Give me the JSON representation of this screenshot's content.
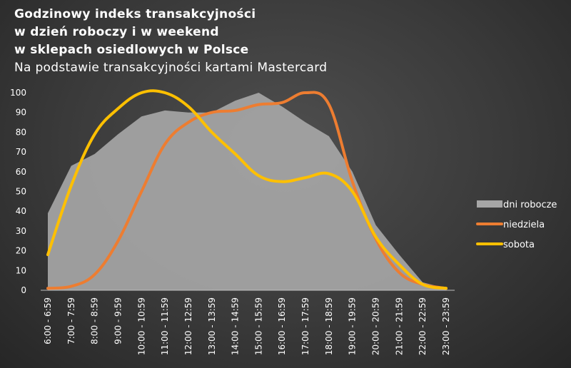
{
  "title_lines": [
    "Godzinowy indeks transakcyjności",
    "w dzień roboczy i w weekend",
    "w sklepach osiedlowych w Polsce"
  ],
  "subtitle": "Na podstawie transakcyjności kartami Mastercard",
  "colors": {
    "dni_robocze": "#a6a6a6",
    "niedziela": "#ed7d31",
    "sobota": "#ffc000"
  },
  "chart_data": {
    "type": "line",
    "title": "Godzinowy indeks transakcyjności w dzień roboczy i w weekend w sklepach osiedlowych w Polsce",
    "subtitle": "Na podstawie transakcyjności kartami Mastercard",
    "categories": [
      "6:00 - 6:59",
      "7:00 - 7:59",
      "8:00 - 8:59",
      "9:00 - 9:59",
      "10:00 - 10:59",
      "11:00 - 11:59",
      "12:00 - 12:59",
      "13:00 - 13:59",
      "14:00 - 14:59",
      "15:00 - 15:59",
      "16:00 - 16:59",
      "17:00 - 17:59",
      "18:00 - 18:59",
      "19:00 - 19:59",
      "20:00 - 20:59",
      "21:00 - 21:59",
      "22:00 - 22:59",
      "23:00 - 23:59"
    ],
    "y_ticks": [
      "0",
      "10",
      "20",
      "30",
      "40",
      "50",
      "60",
      "70",
      "80",
      "90",
      "100"
    ],
    "ylim": [
      0,
      100
    ],
    "grid": false,
    "legend_position": "right",
    "series": [
      {
        "name": "dni robocze",
        "render": "area",
        "values": [
          39,
          63,
          69,
          79,
          88,
          91,
          90,
          90,
          96,
          100,
          93,
          85,
          78,
          60,
          33,
          18,
          4,
          1
        ]
      },
      {
        "name": "niedziela",
        "render": "line",
        "values": [
          1,
          2,
          8,
          25,
          50,
          74,
          85,
          90,
          91,
          94,
          95,
          100,
          94,
          55,
          26,
          9,
          3,
          1
        ]
      },
      {
        "name": "sobota",
        "render": "line",
        "values": [
          18,
          53,
          79,
          92,
          100,
          100,
          93,
          80,
          69,
          58,
          55,
          57,
          59,
          50,
          27,
          13,
          3,
          1
        ]
      }
    ]
  }
}
